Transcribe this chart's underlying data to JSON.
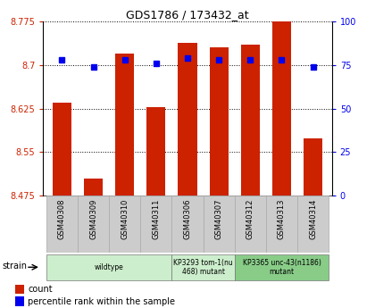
{
  "title": "GDS1786 / 173432_at",
  "samples": [
    "GSM40308",
    "GSM40309",
    "GSM40310",
    "GSM40311",
    "GSM40306",
    "GSM40307",
    "GSM40312",
    "GSM40313",
    "GSM40314"
  ],
  "counts": [
    8.635,
    8.505,
    8.72,
    8.628,
    8.738,
    8.73,
    8.735,
    8.775,
    8.573
  ],
  "percentiles": [
    78,
    74,
    78,
    76,
    79,
    78,
    78,
    78,
    74
  ],
  "ylim_left": [
    8.475,
    8.775
  ],
  "ylim_right": [
    0,
    100
  ],
  "yticks_left": [
    8.475,
    8.55,
    8.625,
    8.7,
    8.775
  ],
  "yticks_right": [
    0,
    25,
    50,
    75,
    100
  ],
  "bar_color": "#cc2200",
  "dot_color": "#0000ee",
  "groups": [
    {
      "label": "wildtype",
      "start": 0,
      "end": 4,
      "color": "#cceecc"
    },
    {
      "label": "KP3293 tom-1(nu\n468) mutant",
      "start": 4,
      "end": 6,
      "color": "#cceecc"
    },
    {
      "label": "KP3365 unc-43(n1186)\nmutant",
      "start": 6,
      "end": 9,
      "color": "#88cc88"
    }
  ],
  "strain_label": "strain",
  "legend_count": "count",
  "legend_pct": "percentile rank within the sample",
  "gridline_color": "#000000",
  "bg_color": "#ffffff",
  "tick_color_left": "#cc2200",
  "tick_color_right": "#0000ee",
  "sample_box_color": "#cccccc"
}
